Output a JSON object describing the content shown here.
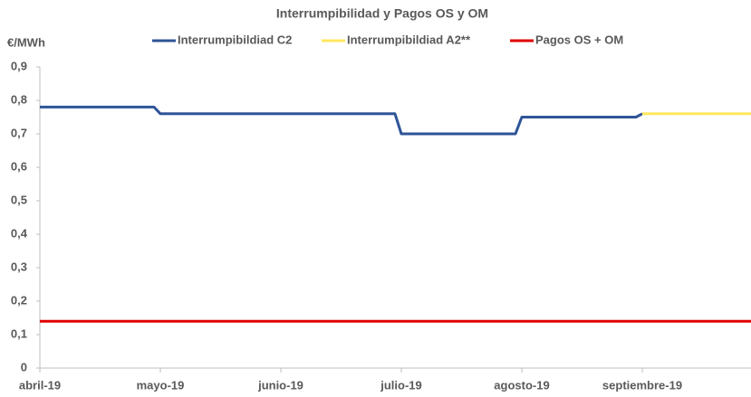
{
  "chart_data": {
    "type": "line",
    "title": "Interrumpibilidad y Pagos OS y OM",
    "y_label": "€/MWh",
    "categories": [
      "abril-19",
      null,
      "mayo-19",
      null,
      "junio-19",
      null,
      "julio-19",
      null,
      "agosto-19",
      null,
      "septiembre-19",
      null
    ],
    "series": [
      {
        "name": "Interrumpibildiad C2",
        "color": "#2f5597",
        "values": [
          0.78,
          0.78,
          0.76,
          0.76,
          0.76,
          0.76,
          0.7,
          0.7,
          0.75,
          0.75,
          0.76,
          null
        ]
      },
      {
        "name": "Interrumpibildiad A2**",
        "color": "#ffe75e",
        "values": [
          null,
          null,
          null,
          null,
          null,
          null,
          null,
          null,
          null,
          null,
          0.76,
          0.76
        ]
      },
      {
        "name": "Pagos OS + OM",
        "color": "#e00000",
        "values": [
          0.14,
          0.14,
          0.14,
          0.14,
          0.14,
          0.14,
          0.14,
          0.14,
          0.14,
          0.14,
          0.14,
          0.14
        ]
      }
    ],
    "ylim": [
      0,
      0.9
    ],
    "yticks": [
      0,
      {
        "value": 0.1,
        "label": "0,1"
      },
      {
        "value": 0.2,
        "label": "0,2"
      },
      {
        "value": 0.3,
        "label": "0,3"
      },
      {
        "value": 0.4,
        "label": "0,4"
      },
      {
        "value": 0.5,
        "label": "0,5"
      },
      {
        "value": 0.6,
        "label": "0,6"
      },
      {
        "value": 0.7,
        "label": "0,7"
      },
      {
        "value": 0.8,
        "label": "0,8"
      },
      {
        "value": 0.9,
        "label": "0,9"
      }
    ],
    "legend": "top"
  }
}
